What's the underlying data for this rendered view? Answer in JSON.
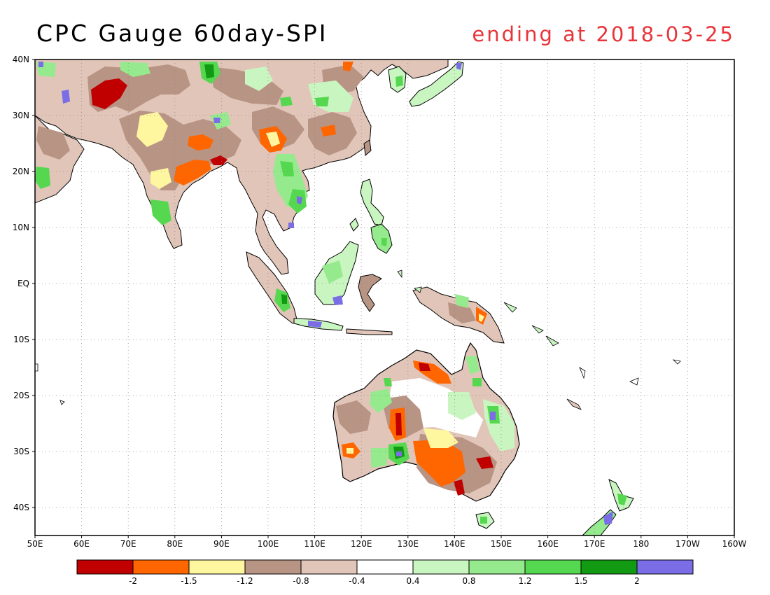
{
  "title": "CPC Gauge 60day-SPI",
  "subtitle": "ending at 2018-03-25",
  "axes": {
    "lon_labels": [
      "50E",
      "60E",
      "70E",
      "80E",
      "90E",
      "100E",
      "110E",
      "120E",
      "130E",
      "140E",
      "150E",
      "160E",
      "170E",
      "180",
      "170W",
      "160W"
    ],
    "lat_labels": [
      "40N",
      "30N",
      "20N",
      "10N",
      "EQ",
      "10S",
      "20S",
      "30S",
      "40S"
    ]
  },
  "map": {
    "lon_range": [
      50,
      200
    ],
    "lat_range": [
      -45,
      40
    ],
    "gridlines": "dotted"
  },
  "legend": {
    "colors": [
      "#c00000",
      "#ff6600",
      "#fff6a0",
      "#b89484",
      "#e1c5b8",
      "#ffffff",
      "#c9f5c0",
      "#96ea8e",
      "#55d84f",
      "#129a12",
      "#7a6de6"
    ],
    "labels": [
      "-2",
      "-1.5",
      "-1.2",
      "-0.8",
      "-0.4",
      "0.4",
      "0.8",
      "1.2",
      "1.5",
      "2"
    ]
  }
}
